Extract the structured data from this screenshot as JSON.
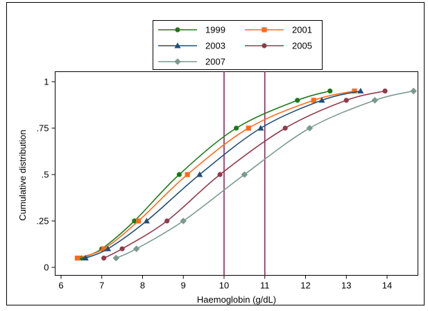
{
  "chart_data": {
    "type": "line",
    "xlabel": "Haemoglobin (g/dL)",
    "ylabel": "Cumulative distribution",
    "xlim": [
      5.9,
      14.7
    ],
    "ylim": [
      0,
      1
    ],
    "x_ticks": [
      6,
      7,
      8,
      9,
      10,
      11,
      12,
      13,
      14
    ],
    "y_ticks": [
      0,
      0.25,
      0.5,
      0.75,
      1
    ],
    "y_tick_labels": [
      "0",
      ".25",
      ".5",
      ".75",
      "1"
    ],
    "reference_lines_x": [
      10,
      11
    ],
    "reference_line_color": "#9b1f5c",
    "legend_position": "top-center",
    "series": [
      {
        "name": "1999",
        "color": "#1a7a1a",
        "marker": "circle",
        "x": [
          6.5,
          7.0,
          7.8,
          8.9,
          10.3,
          11.8,
          12.6
        ],
        "y": [
          0.05,
          0.1,
          0.25,
          0.5,
          0.75,
          0.9,
          0.95
        ]
      },
      {
        "name": "2001",
        "color": "#ff6a1a",
        "marker": "square",
        "x": [
          6.4,
          7.05,
          7.9,
          9.1,
          10.6,
          12.2,
          13.2
        ],
        "y": [
          0.05,
          0.1,
          0.25,
          0.5,
          0.75,
          0.9,
          0.95
        ]
      },
      {
        "name": "2003",
        "color": "#1f4e79",
        "marker": "triangle",
        "x": [
          6.6,
          7.15,
          8.1,
          9.4,
          10.9,
          12.4,
          13.35
        ],
        "y": [
          0.05,
          0.1,
          0.25,
          0.5,
          0.75,
          0.9,
          0.95
        ]
      },
      {
        "name": "2005",
        "color": "#923a4a",
        "marker": "circle",
        "x": [
          7.05,
          7.5,
          8.6,
          9.9,
          11.5,
          13.0,
          13.95
        ],
        "y": [
          0.05,
          0.1,
          0.25,
          0.5,
          0.75,
          0.9,
          0.95
        ]
      },
      {
        "name": "2007",
        "color": "#7a9a8e",
        "marker": "diamond",
        "x": [
          7.35,
          7.85,
          9.0,
          10.5,
          12.1,
          13.7,
          14.65
        ],
        "y": [
          0.05,
          0.1,
          0.25,
          0.5,
          0.75,
          0.9,
          0.95
        ]
      }
    ]
  }
}
